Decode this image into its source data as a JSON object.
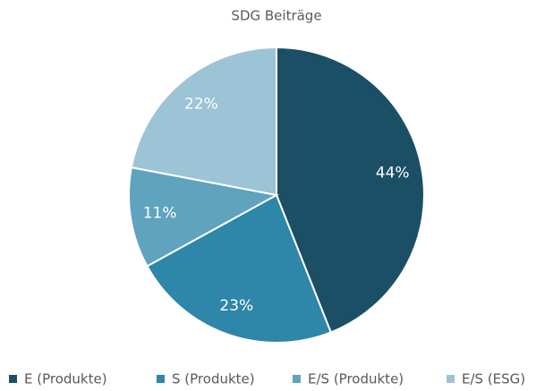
{
  "chart_data": {
    "type": "pie",
    "title": "SDG Beiträge",
    "categories": [
      "E (Produkte)",
      "S (Produkte)",
      "E/S (Produkte)",
      "E/S (ESG)"
    ],
    "values": [
      44,
      23,
      11,
      22
    ],
    "value_labels": [
      "44%",
      "23%",
      "11%",
      "22%"
    ],
    "colors": [
      "#1b4f66",
      "#2e86a8",
      "#5fa3be",
      "#9dc3d6"
    ],
    "legend": "bottom"
  }
}
